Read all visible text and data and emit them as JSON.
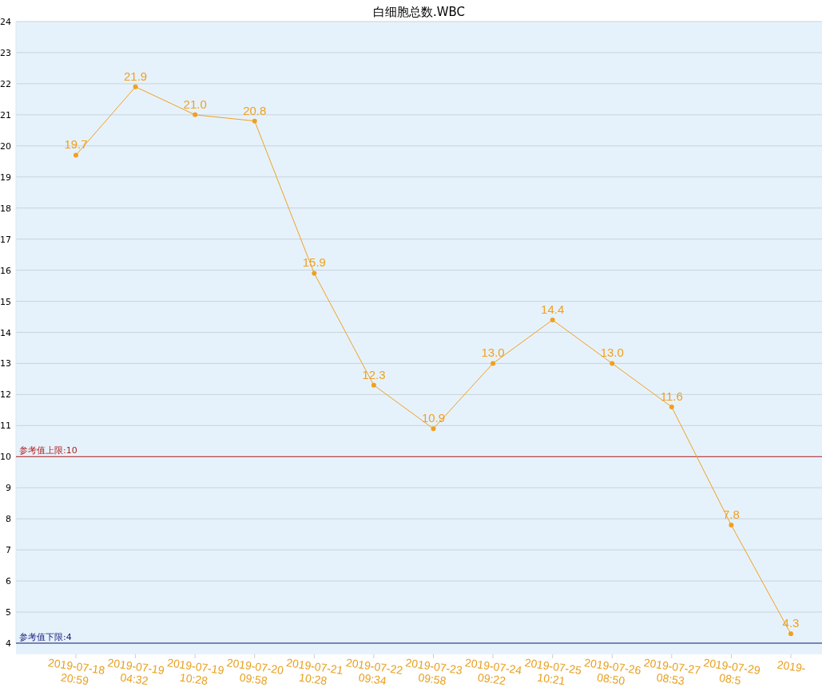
{
  "chart_data": {
    "type": "line",
    "title": "白细胞总数.WBC",
    "categories": [
      "2019-07-18 20:59",
      "2019-07-19 04:32",
      "2019-07-19 10:28",
      "2019-07-20 09:58",
      "2019-07-21 10:28",
      "2019-07-22 09:34",
      "2019-07-23 09:58",
      "2019-07-24 09:22",
      "2019-07-25 10:21",
      "2019-07-26 08:50",
      "2019-07-27 08:53",
      "2019-07-29 08:5",
      "2019-"
    ],
    "series": [
      {
        "color": "#f0a020",
        "values": [
          19.7,
          21.9,
          21.0,
          20.8,
          15.9,
          12.3,
          10.9,
          13.0,
          14.4,
          13.0,
          11.6,
          7.8,
          4.3
        ],
        "value_labels": [
          "19.7",
          "21.9",
          "21.0",
          "20.8",
          "15.9",
          "12.3",
          "10.9",
          "13.0",
          "14.4",
          "13.0",
          "11.6",
          "7.8",
          "4.3"
        ]
      }
    ],
    "ylim": [
      4,
      24
    ],
    "yticks": [
      4,
      5,
      6,
      7,
      8,
      9,
      10,
      11,
      12,
      13,
      14,
      15,
      16,
      17,
      18,
      19,
      20,
      21,
      22,
      23,
      24
    ],
    "grid": "y",
    "marker": "circle",
    "ref_lines": [
      {
        "axis": "y",
        "value": 10,
        "label": "参考值上限:10",
        "color": "#b22222"
      },
      {
        "axis": "y",
        "value": 4,
        "label": "参考值下限:4",
        "color": "#1a237e"
      }
    ]
  }
}
